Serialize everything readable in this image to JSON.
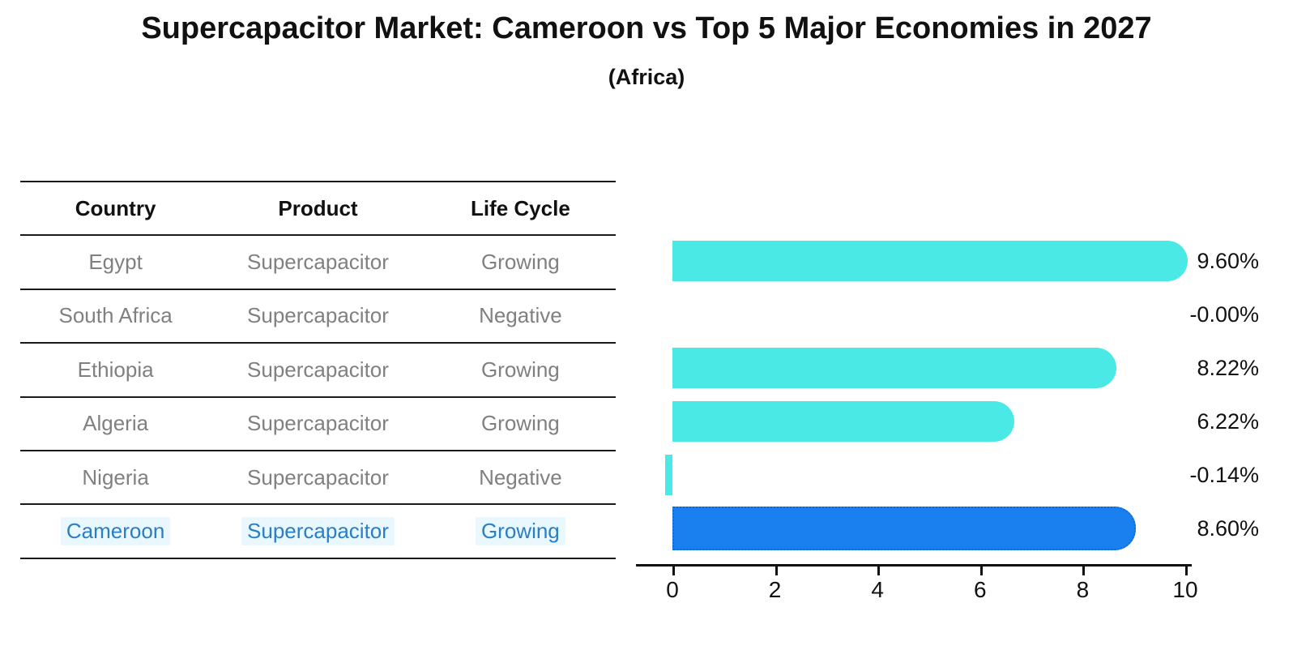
{
  "header": {
    "title": "Supercapacitor Market: Cameroon vs Top 5 Major Economies in 2027",
    "subtitle": "(Africa)"
  },
  "table": {
    "columns": [
      "Country",
      "Product",
      "Life Cycle"
    ],
    "rows": [
      {
        "country": "Egypt",
        "product": "Supercapacitor",
        "life_cycle": "Growing",
        "highlighted": false
      },
      {
        "country": "South Africa",
        "product": "Supercapacitor",
        "life_cycle": "Negative",
        "highlighted": false
      },
      {
        "country": "Ethiopia",
        "product": "Supercapacitor",
        "life_cycle": "Growing",
        "highlighted": false
      },
      {
        "country": "Algeria",
        "product": "Supercapacitor",
        "life_cycle": "Growing",
        "highlighted": false
      },
      {
        "country": "Nigeria",
        "product": "Supercapacitor",
        "life_cycle": "Negative",
        "highlighted": false
      },
      {
        "country": "Cameroon",
        "product": "Supercapacitor",
        "life_cycle": "Growing",
        "highlighted": true
      }
    ]
  },
  "chart_data": {
    "type": "bar",
    "orientation": "horizontal",
    "categories": [
      "Egypt",
      "South Africa",
      "Ethiopia",
      "Algeria",
      "Nigeria",
      "Cameroon"
    ],
    "values": [
      9.6,
      -0.0,
      8.22,
      6.22,
      -0.14,
      8.6
    ],
    "labels": [
      "9.60%",
      "-0.00%",
      "8.22%",
      "6.22%",
      "-0.14%",
      "8.60%"
    ],
    "title": "",
    "xlabel": "",
    "ylabel": "",
    "xlim": [
      0,
      10
    ],
    "xticks": [
      0,
      2,
      4,
      6,
      8,
      10
    ],
    "grid": false,
    "legend": "none",
    "bar_color": "#4ae9e6",
    "highlight_index": 5,
    "highlight_bar_color": "#1a80f0",
    "highlight_border_color": "#0e6ad6",
    "highlight_text_color": "#2a7ec6",
    "text_color": "#111111",
    "muted_text_color": "#808080"
  }
}
